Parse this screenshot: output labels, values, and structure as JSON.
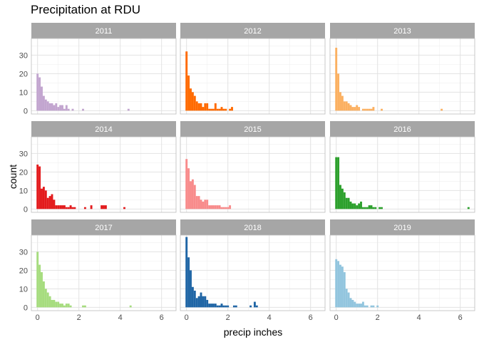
{
  "chart_data": {
    "type": "bar",
    "title": "Precipitation at RDU",
    "xlabel": "precip inches",
    "ylabel": "count",
    "xlim": [
      -0.3,
      6.7
    ],
    "ylim": [
      -1.8,
      39
    ],
    "x_ticks": [
      0,
      2,
      4,
      6
    ],
    "y_ticks": [
      0,
      10,
      20,
      30
    ],
    "bin_width": 0.1,
    "grid": true,
    "layout": "facets 3x3",
    "panels": [
      {
        "label": "2011",
        "color": "#c2a5cf",
        "bins": [
          0,
          0.1,
          0.2,
          0.3,
          0.4,
          0.5,
          0.6,
          0.7,
          0.8,
          0.9,
          1.0,
          1.1,
          1.2,
          1.3,
          1.4,
          1.5,
          1.7,
          2.2,
          4.4
        ],
        "counts": [
          20,
          18,
          13,
          8,
          6,
          5,
          4,
          4,
          3,
          4,
          2,
          3,
          3,
          1,
          3,
          1,
          1,
          1,
          1
        ]
      },
      {
        "label": "2012",
        "color": "#ff6a00",
        "bins": [
          0,
          0.1,
          0.2,
          0.3,
          0.4,
          0.5,
          0.6,
          0.7,
          0.8,
          0.9,
          1.0,
          1.1,
          1.2,
          1.3,
          1.4,
          1.5,
          1.6,
          1.7,
          1.8,
          1.9,
          2.1,
          2.2
        ],
        "counts": [
          32,
          19,
          12,
          10,
          8,
          5,
          4,
          4,
          2,
          4,
          4,
          1,
          1,
          1,
          4,
          1,
          1,
          2,
          1,
          1,
          1,
          2
        ]
      },
      {
        "label": "2013",
        "color": "#fbb061",
        "bins": [
          0,
          0.1,
          0.2,
          0.3,
          0.4,
          0.5,
          0.6,
          0.7,
          0.8,
          0.9,
          1.0,
          1.1,
          1.3,
          1.4,
          1.5,
          1.6,
          1.7,
          1.8,
          2.2,
          5.1
        ],
        "counts": [
          34,
          20,
          10,
          8,
          5,
          5,
          4,
          3,
          2,
          2,
          3,
          2,
          1,
          1,
          1,
          1,
          1,
          2,
          1,
          1
        ]
      },
      {
        "label": "2014",
        "color": "#e31a1c",
        "bins": [
          0,
          0.1,
          0.2,
          0.3,
          0.4,
          0.5,
          0.6,
          0.7,
          0.8,
          0.9,
          1.0,
          1.1,
          1.2,
          1.3,
          1.4,
          1.5,
          1.6,
          1.7,
          1.8,
          2.3,
          2.6,
          3.1,
          3.2,
          3.3,
          4.2
        ],
        "counts": [
          24,
          23,
          11,
          12,
          10,
          6,
          7,
          8,
          5,
          2,
          2,
          2,
          2,
          2,
          1,
          1,
          2,
          1,
          1,
          1,
          2,
          2,
          2,
          2,
          1
        ]
      },
      {
        "label": "2015",
        "color": "#f88b8b",
        "bins": [
          0,
          0.1,
          0.2,
          0.3,
          0.4,
          0.5,
          0.6,
          0.7,
          0.8,
          0.9,
          1.0,
          1.1,
          1.2,
          1.3,
          1.4,
          1.5,
          1.6,
          1.7,
          1.8,
          1.9,
          2.0,
          2.1
        ],
        "counts": [
          27,
          22,
          15,
          16,
          13,
          7,
          7,
          5,
          4,
          5,
          5,
          2,
          2,
          2,
          2,
          2,
          2,
          1,
          1,
          1,
          1,
          2
        ]
      },
      {
        "label": "2016",
        "color": "#2ca02c",
        "bins": [
          0,
          0.1,
          0.2,
          0.3,
          0.4,
          0.5,
          0.6,
          0.7,
          0.8,
          0.9,
          1.0,
          1.1,
          1.2,
          1.3,
          1.4,
          1.5,
          1.6,
          1.7,
          1.8,
          1.9,
          2.1,
          2.2,
          6.4
        ],
        "counts": [
          28,
          28,
          13,
          11,
          9,
          6,
          6,
          4,
          3,
          3,
          2,
          3,
          4,
          1,
          1,
          1,
          2,
          2,
          1,
          1,
          1,
          1,
          1
        ]
      },
      {
        "label": "2017",
        "color": "#a6dc7e",
        "bins": [
          0,
          0.1,
          0.2,
          0.3,
          0.4,
          0.5,
          0.6,
          0.7,
          0.8,
          0.9,
          1.0,
          1.1,
          1.2,
          1.3,
          1.4,
          1.5,
          1.6,
          2.2,
          2.3,
          4.5
        ],
        "counts": [
          30,
          23,
          19,
          14,
          10,
          8,
          6,
          4,
          4,
          3,
          3,
          2,
          2,
          1,
          2,
          2,
          1,
          1,
          1,
          1
        ]
      },
      {
        "label": "2018",
        "color": "#1f65a5",
        "bins": [
          0,
          0.1,
          0.2,
          0.3,
          0.4,
          0.5,
          0.6,
          0.7,
          0.8,
          0.9,
          1.0,
          1.1,
          1.2,
          1.3,
          1.4,
          1.5,
          1.6,
          1.7,
          1.8,
          1.9,
          2.0,
          2.3,
          2.4,
          3.1,
          3.3,
          3.4
        ],
        "counts": [
          38,
          27,
          20,
          11,
          9,
          5,
          6,
          8,
          6,
          6,
          4,
          2,
          2,
          2,
          2,
          1,
          1,
          2,
          1,
          1,
          1,
          1,
          1,
          1,
          3,
          1
        ]
      },
      {
        "label": "2019",
        "color": "#92c5de",
        "bins": [
          0,
          0.1,
          0.2,
          0.3,
          0.4,
          0.5,
          0.6,
          0.7,
          0.8,
          0.9,
          1.0,
          1.1,
          1.2,
          1.3,
          1.4,
          1.5,
          1.7,
          1.8,
          2.0
        ],
        "counts": [
          26,
          25,
          23,
          22,
          19,
          10,
          8,
          5,
          4,
          3,
          2,
          2,
          2,
          3,
          1,
          1,
          1,
          1,
          1
        ]
      }
    ]
  }
}
